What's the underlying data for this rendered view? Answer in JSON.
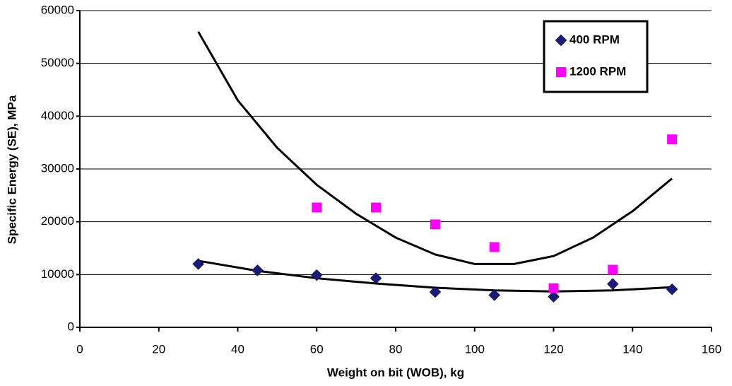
{
  "chart_data": {
    "type": "scatter",
    "xlabel": "Weight on bit (WOB), kg",
    "ylabel": "Specific Energy (SE), MPa",
    "xlim": [
      0,
      160
    ],
    "xticks": [
      0,
      20,
      40,
      60,
      80,
      100,
      120,
      140,
      160
    ],
    "ylim": [
      0,
      60000
    ],
    "yticks": [
      0,
      10000,
      20000,
      30000,
      40000,
      50000,
      60000
    ],
    "grid": true,
    "legend": "upper right",
    "series": [
      {
        "name": "400 RPM",
        "color": "#1a1a7a",
        "marker": "diamond",
        "x": [
          30,
          45,
          60,
          75,
          90,
          105,
          120,
          135,
          150
        ],
        "values": [
          12000,
          10800,
          9900,
          9300,
          6700,
          6100,
          5800,
          8200,
          7200
        ]
      },
      {
        "name": "1200 RPM",
        "color": "#ff00ff",
        "marker": "square",
        "x": [
          60,
          75,
          90,
          105,
          120,
          135,
          150
        ],
        "values": [
          22700,
          22700,
          19500,
          15200,
          7400,
          10900,
          35600
        ]
      }
    ],
    "trendlines": [
      {
        "color": "#000000",
        "x": [
          30,
          45,
          60,
          75,
          90,
          105,
          120,
          135,
          150
        ],
        "values": [
          12600,
          10700,
          9300,
          8300,
          7500,
          7000,
          6800,
          7000,
          7600
        ]
      },
      {
        "color": "#000000",
        "x": [
          30,
          40,
          50,
          60,
          70,
          80,
          90,
          100,
          110,
          120,
          130,
          140,
          150
        ],
        "values": [
          56000,
          43000,
          34000,
          27000,
          21500,
          17000,
          13800,
          12000,
          12000,
          13500,
          17000,
          22000,
          28200
        ]
      }
    ]
  }
}
